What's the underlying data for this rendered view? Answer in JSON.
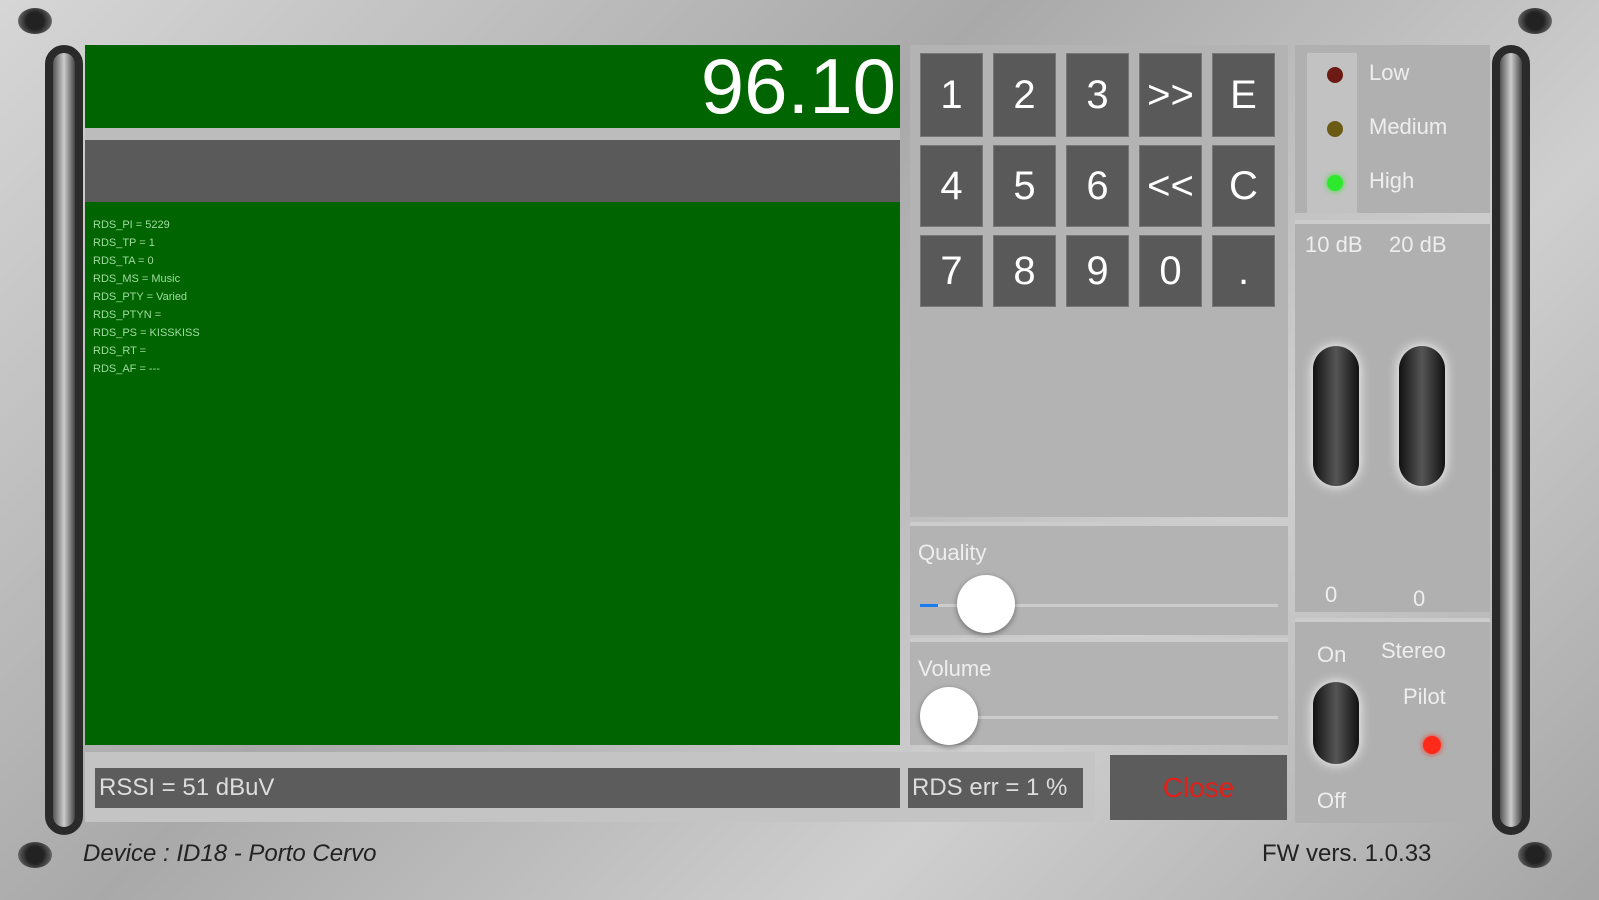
{
  "frequency": "96.10",
  "rds_lines": [
    "RDS_PI = 5229",
    "RDS_TP = 1",
    "RDS_TA = 0",
    "RDS_MS = Music",
    "RDS_PTY = Varied",
    "RDS_PTYN =",
    "RDS_PS = KISSKISS",
    "RDS_RT =",
    "RDS_AF = ---"
  ],
  "keypad": [
    "1",
    "2",
    "3",
    ">>",
    "E",
    "4",
    "5",
    "6",
    "<<",
    "C",
    "7",
    "8",
    "9",
    "0",
    "."
  ],
  "quality": {
    "label": "Quality",
    "value": 0.05
  },
  "volume": {
    "label": "Volume",
    "value": 0
  },
  "rssi": "RSSI = 51 dBuV",
  "rds_err": "RDS err = 1 %",
  "close_label": "Close",
  "signal_leds": [
    {
      "label": "Low",
      "color": "#6b1a14"
    },
    {
      "label": "Medium",
      "color": "#6b5a14"
    },
    {
      "label": "High",
      "color": "#2ee82e"
    }
  ],
  "attenuator": {
    "label_10": "10 dB",
    "label_20": "20 dB",
    "value_10": "0",
    "value_20": "0"
  },
  "stereo": {
    "on_label": "On",
    "off_label": "Off",
    "title": "Stereo",
    "pilot": "Pilot",
    "pilot_color": "#ff2a1a"
  },
  "device": "Device : ID18 - Porto Cervo",
  "fw": "FW vers. 1.0.33"
}
